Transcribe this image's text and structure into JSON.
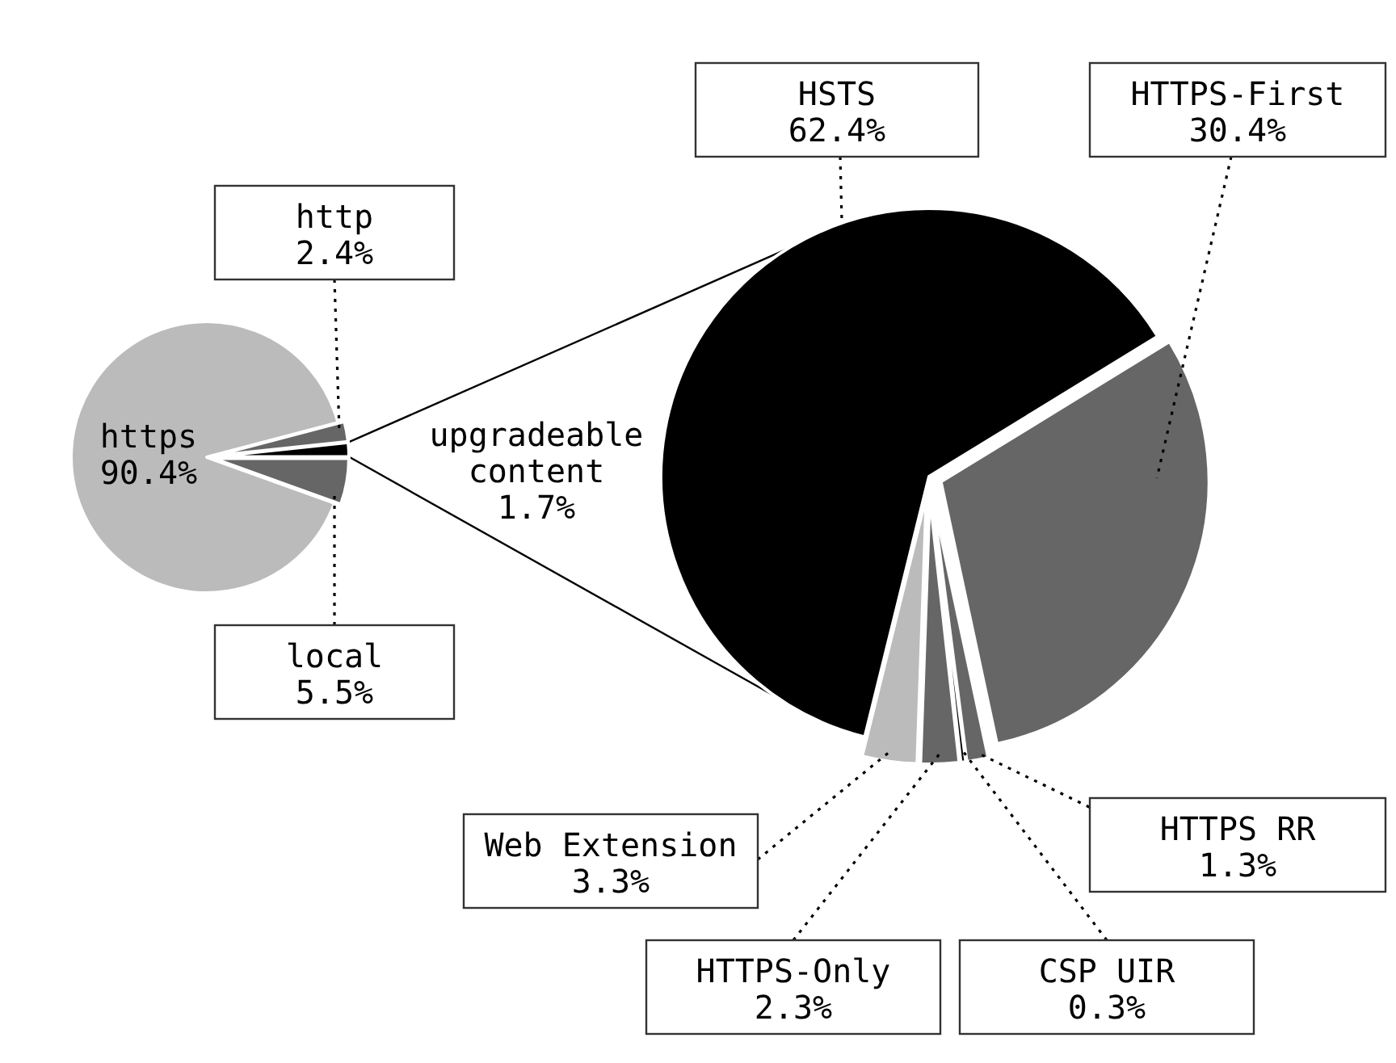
{
  "chart_data": [
    {
      "type": "pie",
      "categories": [
        "https",
        "http",
        "upgradeable content",
        "local"
      ],
      "values": [
        90.4,
        2.4,
        1.7,
        5.5
      ],
      "colors": [
        "#bbbbbb",
        "#666666",
        "#000000",
        "#666666"
      ],
      "value_labels": [
        "90.4%",
        "2.4%",
        "1.7%",
        "5.5%"
      ]
    },
    {
      "type": "pie",
      "categories": [
        "HSTS",
        "HTTPS-First",
        "HTTPS RR",
        "CSP UIR",
        "HTTPS-Only",
        "Web Extension"
      ],
      "values": [
        62.4,
        30.4,
        1.3,
        0.3,
        2.3,
        3.3
      ],
      "colors": [
        "#000000",
        "#666666",
        "#666666",
        "#000000",
        "#666666",
        "#bbbbbb"
      ],
      "value_labels": [
        "62.4%",
        "30.4%",
        "1.3%",
        "0.3%",
        "2.3%",
        "3.3%"
      ]
    }
  ]
}
